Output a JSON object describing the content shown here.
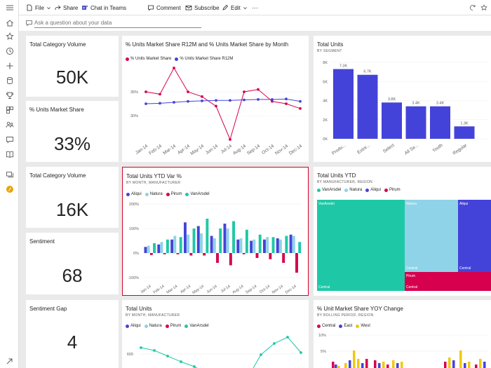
{
  "toolbar": {
    "file": "File",
    "share": "Share",
    "chat": "Chat in Teams",
    "comment": "Comment",
    "subscribe": "Subscribe",
    "edit": "Edit",
    "more": "···"
  },
  "qa": {
    "placeholder": "Ask a question about your data"
  },
  "nav_icons": [
    "hamburger-icon",
    "home-icon",
    "star-icon",
    "recent-icon",
    "plus-icon",
    "datasets-icon",
    "goals-icon",
    "apps-icon",
    "shared-icon",
    "learn-icon",
    "workspaces-icon",
    "deployment-icon",
    "user-avatar",
    "expand-icon"
  ],
  "colors": {
    "accent_red": "#d6002a",
    "blue": "#4443d9",
    "crimson": "#d6004e",
    "teal": "#1ec8a6",
    "lightblue": "#8fd3e8",
    "yellow": "#f2c80f"
  },
  "cards": [
    {
      "title": "Total Category Volume",
      "value": "50K"
    },
    {
      "title": "% Units Market Share",
      "value": "33%"
    },
    {
      "title": "Total Category Volume",
      "value": "16K"
    },
    {
      "title": "Sentiment",
      "value": "68"
    },
    {
      "title": "Sentiment Gap",
      "value": "4"
    }
  ],
  "charts": {
    "line_share": {
      "title": "% Units Market Share R12M and % Units Market Share by Month",
      "legend": [
        "% Units Market Share",
        "% Units Market Share R12M"
      ]
    },
    "total_units_segment": {
      "title": "Total Units",
      "subtitle": "BY SEGMENT"
    },
    "ytd_var": {
      "title": "Total Units YTD Var %",
      "subtitle": "BY MONTH, MANUFACTURER",
      "legend": [
        "Aliqui",
        "Natura",
        "Pirum",
        "VanArsdel"
      ]
    },
    "treemap": {
      "title": "Total Units YTD",
      "subtitle": "BY MANUFACTURER, REGION",
      "legend": [
        "VanArsdel",
        "Natura",
        "Aliqui",
        "Pirum"
      ],
      "labels": {
        "vanarsdel": "VanArsdel",
        "natura": "Natura",
        "aliqui": "Aliqui",
        "pirum": "Pirum",
        "central": "Central"
      }
    },
    "total_units_month": {
      "title": "Total Units",
      "subtitle": "BY MONTH, MANUFACTURER",
      "legend": [
        "Aliqui",
        "Natura",
        "Pirum",
        "VanArsdel"
      ]
    },
    "yoy": {
      "title": "% Unit Market Share YOY Change",
      "subtitle": "BY ROLLING PERIOD, REGION",
      "legend": [
        "Central",
        "East",
        "West"
      ]
    }
  },
  "chart_data": [
    {
      "type": "line",
      "title": "% Units Market Share R12M and % Units Market Share by Month",
      "categories": [
        "Jan-14",
        "Feb-14",
        "Mar-14",
        "Apr-14",
        "May-14",
        "Jun-14",
        "Jul-14",
        "Aug-14",
        "Sep-14",
        "Oct-14",
        "Nov-14",
        "Dec-14"
      ],
      "series": [
        {
          "name": "% Units Market Share",
          "values": [
            35,
            34.5,
            40,
            35,
            34,
            32,
            25,
            35,
            35.5,
            33,
            32.5,
            31.5
          ]
        },
        {
          "name": "% Units Market Share R12M",
          "values": [
            32.5,
            32.6,
            32.8,
            33,
            33.1,
            33.2,
            33.2,
            33.3,
            33.4,
            33.4,
            33.5,
            33
          ]
        }
      ],
      "yticks": [
        "30%",
        "35%"
      ],
      "ylim": [
        25,
        40
      ]
    },
    {
      "type": "bar",
      "title": "Total Units",
      "subtitle": "BY SEGMENT",
      "categories": [
        "Produ...",
        "Extre...",
        "Select",
        "All Se...",
        "Youth",
        "Regular"
      ],
      "values": [
        7.3,
        6.7,
        3.8,
        3.4,
        3.4,
        1.3
      ],
      "data_labels": [
        "7.3K",
        "6.7K",
        "3.8K",
        "3.4K",
        "3.4K",
        "1.3K"
      ],
      "yticks": [
        "0K",
        "2K",
        "4K",
        "6K",
        "8K"
      ],
      "ylim": [
        0,
        8
      ]
    },
    {
      "type": "bar",
      "title": "Total Units YTD Var %",
      "subtitle": "BY MONTH, MANUFACTURER",
      "categories": [
        "Jan-14",
        "Feb-14",
        "Mar-14",
        "Apr-14",
        "May-14",
        "Jun-14",
        "Jul-14",
        "Aug-14",
        "Sep-14",
        "Oct-14",
        "Nov-14",
        "Dec-14"
      ],
      "series": [
        {
          "name": "Aliqui",
          "values": [
            25,
            35,
            55,
            125,
            110,
            70,
            120,
            55,
            50,
            55,
            60,
            75
          ]
        },
        {
          "name": "Natura",
          "values": [
            30,
            45,
            70,
            75,
            80,
            60,
            100,
            60,
            55,
            65,
            55,
            70
          ]
        },
        {
          "name": "Pirum",
          "values": [
            -8,
            -5,
            -5,
            -10,
            -10,
            -40,
            -50,
            -5,
            -20,
            -25,
            -40,
            -80
          ]
        },
        {
          "name": "VanArsdel",
          "values": [
            40,
            55,
            65,
            100,
            140,
            100,
            130,
            95,
            75,
            65,
            70,
            45
          ]
        }
      ],
      "yticks": [
        "-100%",
        "0%",
        "100%",
        "200%"
      ],
      "ylim": [
        -100,
        200
      ]
    },
    {
      "type": "table",
      "title": "Total Units YTD",
      "subtitle": "BY MANUFACTURER, REGION",
      "categories": [
        "VanArsdel",
        "Natura",
        "Aliqui",
        "Pirum"
      ]
    },
    {
      "type": "line",
      "title": "Total Units",
      "subtitle": "BY MONTH, MANUFACTURER",
      "yticks": [
        "600"
      ]
    },
    {
      "type": "bar",
      "title": "% Unit Market Share YOY Change",
      "subtitle": "BY ROLLING PERIOD, REGION",
      "yticks": [
        "10%",
        "5%"
      ]
    }
  ]
}
